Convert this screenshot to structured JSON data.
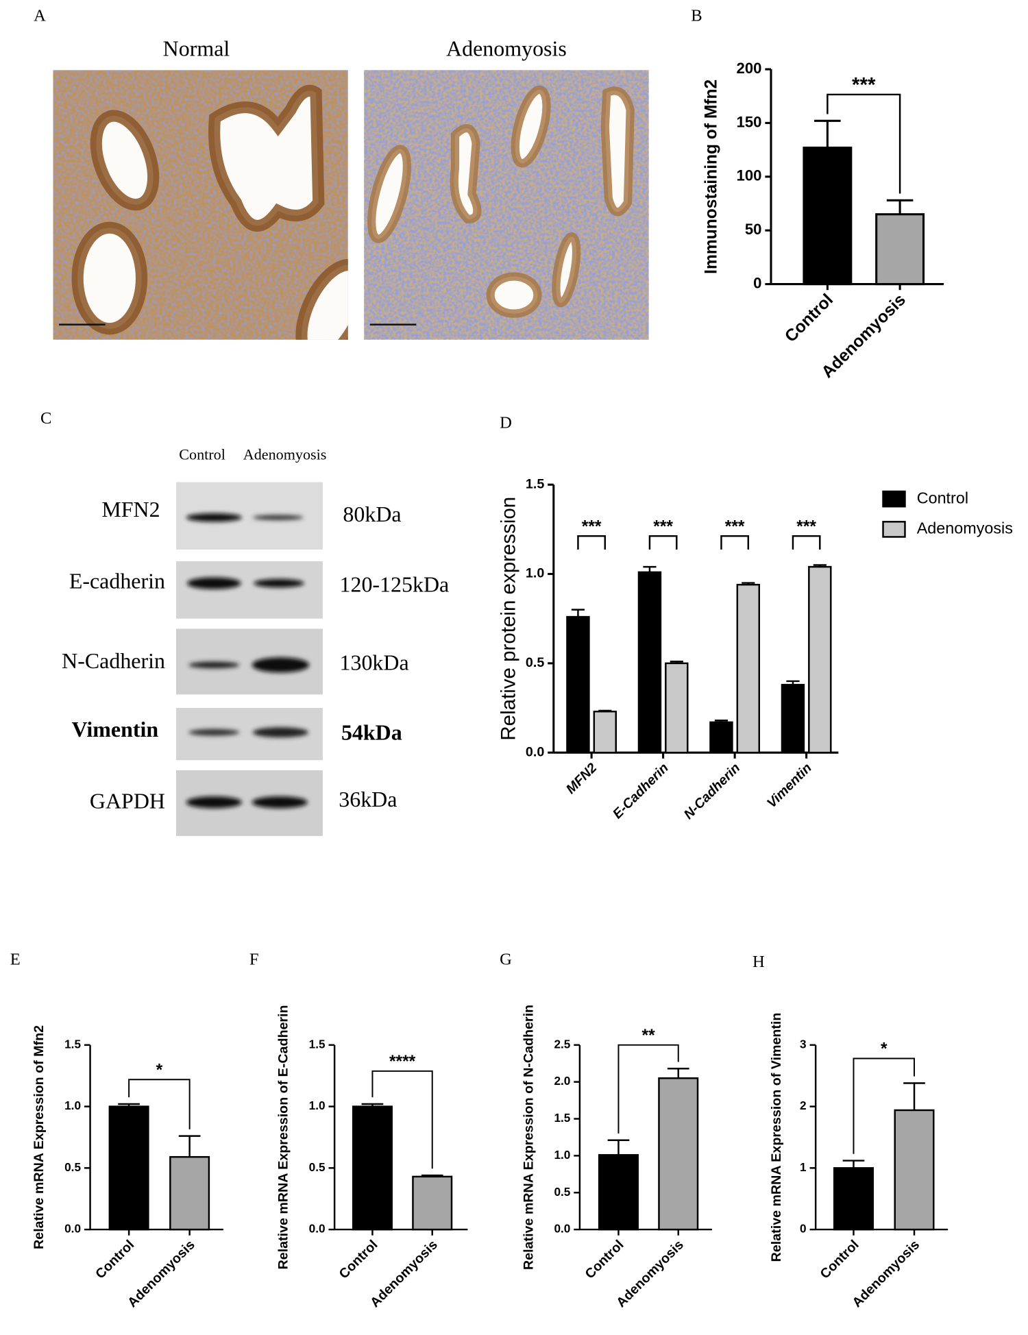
{
  "panel_labels": [
    "A",
    "B",
    "C",
    "D",
    "E",
    "F",
    "G",
    "H"
  ],
  "histology": {
    "titles": [
      "Normal",
      "Adenomyosis"
    ]
  },
  "western_blot": {
    "lanes": [
      "Control",
      "Adenomyosis"
    ],
    "proteins": [
      "MFN2",
      "E-cadherin",
      "N-Cadherin",
      "Vimentin",
      "GAPDH"
    ],
    "sizes": [
      "80kDa",
      "120-125kDa",
      "130kDa",
      "54kDa",
      "36kDa"
    ]
  },
  "chart_data": [
    {
      "type": "bar",
      "ylabel": "Immunostaining of Mfn2",
      "categories": [
        "Control",
        "Adenomyosis"
      ],
      "values": [
        127,
        65
      ],
      "errors": [
        25,
        13
      ],
      "colors": [
        "#000000",
        "#a6a6a6"
      ],
      "ylim": [
        0,
        200
      ],
      "yticks": [
        0,
        50,
        100,
        150,
        200
      ],
      "significance": "***"
    },
    {
      "type": "grouped_bar",
      "ylabel": "Relative protein expression",
      "categories": [
        "MFN2",
        "E-Cadherin",
        "N-Cadherin",
        "Vimentin"
      ],
      "series": [
        {
          "name": "Control",
          "color": "#000000",
          "values": [
            0.76,
            1.01,
            0.17,
            0.38
          ],
          "errors": [
            0.04,
            0.03,
            0.01,
            0.02
          ]
        },
        {
          "name": "Adenomyosis",
          "color": "#c8c8c8",
          "values": [
            0.23,
            0.5,
            0.94,
            1.04
          ],
          "errors": [
            0.005,
            0.01,
            0.01,
            0.01
          ]
        }
      ],
      "ylim": [
        0,
        1.5
      ],
      "yticks": [
        {
          "value": 0,
          "label": "0.0"
        },
        {
          "value": 0.5,
          "label": "0.5"
        },
        {
          "value": 1,
          "label": "1.0"
        },
        {
          "value": 1.5,
          "label": "1.5"
        }
      ],
      "significance": [
        "***",
        "***",
        "***",
        "***"
      ],
      "legend": "right"
    },
    {
      "type": "bar",
      "ylabel": "Relative mRNA Expression of Mfn2",
      "categories": [
        "Control",
        "Adenomyosis"
      ],
      "values": [
        1.0,
        0.59
      ],
      "errors": [
        0.02,
        0.17
      ],
      "colors": [
        "#000000",
        "#a6a6a6"
      ],
      "ylim": [
        0,
        1.5
      ],
      "yticks": [
        {
          "value": 0,
          "label": "0.0"
        },
        {
          "value": 0.5,
          "label": "0.5"
        },
        {
          "value": 1,
          "label": "1.0"
        },
        {
          "value": 1.5,
          "label": "1.5"
        }
      ],
      "significance": "*"
    },
    {
      "type": "bar",
      "ylabel": "Relative mRNA Expression of E-Cadherin",
      "categories": [
        "Control",
        "Adenomyosis"
      ],
      "values": [
        1.0,
        0.43
      ],
      "errors": [
        0.02,
        0.01
      ],
      "colors": [
        "#000000",
        "#a6a6a6"
      ],
      "ylim": [
        0,
        1.5
      ],
      "yticks": [
        {
          "value": 0,
          "label": "0.0"
        },
        {
          "value": 0.5,
          "label": "0.5"
        },
        {
          "value": 1,
          "label": "1.0"
        },
        {
          "value": 1.5,
          "label": "1.5"
        }
      ],
      "significance": "****"
    },
    {
      "type": "bar",
      "ylabel": "Relative mRNA Expression of N-Cadherin",
      "categories": [
        "Control",
        "Adenomyosis"
      ],
      "values": [
        1.01,
        2.05
      ],
      "errors": [
        0.2,
        0.13
      ],
      "colors": [
        "#000000",
        "#a6a6a6"
      ],
      "ylim": [
        0,
        2.5
      ],
      "yticks": [
        {
          "value": 0,
          "label": "0.0"
        },
        {
          "value": 0.5,
          "label": "0.5"
        },
        {
          "value": 1,
          "label": "1.0"
        },
        {
          "value": 1.5,
          "label": "1.5"
        },
        {
          "value": 2,
          "label": "2.0"
        },
        {
          "value": 2.5,
          "label": "2.5"
        }
      ],
      "significance": "**"
    },
    {
      "type": "bar",
      "ylabel": "Relative mRNA Expression of Vimentin",
      "categories": [
        "Control",
        "Adenomyosis"
      ],
      "values": [
        1.0,
        1.94
      ],
      "errors": [
        0.12,
        0.44
      ],
      "colors": [
        "#000000",
        "#a6a6a6"
      ],
      "ylim": [
        0,
        3
      ],
      "yticks": [
        0,
        1,
        2,
        3
      ],
      "significance": "*"
    }
  ]
}
